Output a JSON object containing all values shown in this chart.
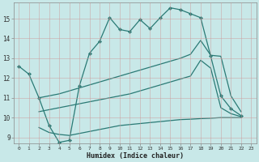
{
  "title": "",
  "xlabel": "Humidex (Indice chaleur)",
  "bg_color": "#c8e8e8",
  "grid_color": "#aacccc",
  "line_color": "#2a7a75",
  "xlim": [
    -0.5,
    23.5
  ],
  "ylim": [
    8.7,
    15.8
  ],
  "yticks": [
    9,
    10,
    11,
    12,
    13,
    14,
    15
  ],
  "xticks": [
    0,
    1,
    2,
    3,
    4,
    5,
    6,
    7,
    8,
    9,
    10,
    11,
    12,
    13,
    14,
    15,
    16,
    17,
    18,
    19,
    20,
    21,
    22,
    23
  ],
  "line1_x": [
    0,
    1,
    2,
    3,
    4,
    5,
    6,
    7,
    8,
    9,
    10,
    11,
    12,
    13,
    14,
    15,
    16,
    17,
    18,
    19,
    20,
    21,
    22
  ],
  "line1_y": [
    12.6,
    12.2,
    11.0,
    9.6,
    8.75,
    8.85,
    11.6,
    13.25,
    13.85,
    15.05,
    14.45,
    14.35,
    14.95,
    14.5,
    15.05,
    15.55,
    15.45,
    15.25,
    15.05,
    13.1,
    11.1,
    10.45,
    10.1
  ],
  "line2_x": [
    2,
    3,
    4,
    5,
    6,
    7,
    8,
    9,
    10,
    11,
    12,
    13,
    14,
    15,
    16,
    17,
    18,
    19,
    20,
    21,
    22
  ],
  "line2_y": [
    11.0,
    11.1,
    11.2,
    11.35,
    11.5,
    11.65,
    11.8,
    11.95,
    12.1,
    12.25,
    12.4,
    12.55,
    12.7,
    12.85,
    13.0,
    13.2,
    13.9,
    13.15,
    13.1,
    11.1,
    10.3
  ],
  "line3_x": [
    2,
    3,
    4,
    5,
    6,
    7,
    8,
    9,
    10,
    11,
    12,
    13,
    14,
    15,
    16,
    17,
    18,
    19,
    20,
    21,
    22
  ],
  "line3_y": [
    10.3,
    10.4,
    10.5,
    10.6,
    10.7,
    10.8,
    10.9,
    11.0,
    11.1,
    11.2,
    11.35,
    11.5,
    11.65,
    11.8,
    11.95,
    12.1,
    12.9,
    12.5,
    10.5,
    10.2,
    10.05
  ],
  "line4_x": [
    2,
    3,
    4,
    5,
    6,
    7,
    8,
    9,
    10,
    11,
    12,
    13,
    14,
    15,
    16,
    17,
    18,
    19,
    20,
    21,
    22
  ],
  "line4_y": [
    9.5,
    9.25,
    9.15,
    9.1,
    9.2,
    9.3,
    9.4,
    9.5,
    9.6,
    9.65,
    9.7,
    9.75,
    9.8,
    9.85,
    9.9,
    9.92,
    9.95,
    9.97,
    10.0,
    10.0,
    10.0
  ]
}
